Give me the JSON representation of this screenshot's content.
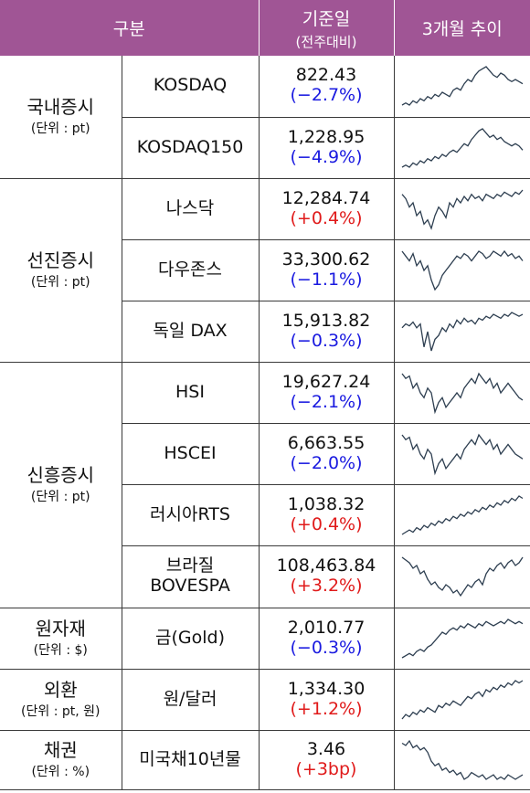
{
  "header": {
    "category": "구분",
    "price": "기준일",
    "price_sub": "(전주대비)",
    "trend": "3개월 추이"
  },
  "groups": [
    {
      "name": "국내증시",
      "unit": "(단위 : pt)",
      "rows": [
        {
          "item": "KOSDAQ",
          "value": "822.43",
          "change": "(−2.7%)",
          "dir": "neg",
          "spark": [
            30,
            31,
            30,
            32,
            31,
            33,
            32,
            34,
            33,
            35,
            34,
            36,
            35,
            34,
            37,
            38,
            37,
            40,
            42,
            41,
            44,
            46,
            47,
            48,
            46,
            44,
            43,
            45,
            44,
            42,
            41,
            42,
            41,
            40
          ]
        },
        {
          "item": "KOSDAQ150",
          "value": "1,228.95",
          "change": "(−4.9%)",
          "dir": "neg",
          "spark": [
            30,
            31,
            30,
            32,
            31,
            33,
            32,
            34,
            33,
            35,
            34,
            36,
            35,
            37,
            38,
            37,
            39,
            41,
            40,
            43,
            45,
            47,
            48,
            46,
            44,
            45,
            43,
            44,
            42,
            41,
            40,
            41,
            40,
            38
          ]
        }
      ]
    },
    {
      "name": "선진증시",
      "unit": "(단위 : pt)",
      "rows": [
        {
          "item": "나스닥",
          "value": "12,284.74",
          "change": "(+0.4%)",
          "dir": "pos",
          "spark": [
            46,
            44,
            40,
            42,
            36,
            38,
            32,
            34,
            30,
            36,
            40,
            38,
            35,
            42,
            40,
            44,
            42,
            45,
            43,
            46,
            44,
            45,
            43,
            46,
            45,
            44,
            46,
            45,
            47,
            46,
            45,
            47,
            46,
            48
          ]
        },
        {
          "item": "다우존스",
          "value": "33,300.62",
          "change": "(−1.1%)",
          "dir": "neg",
          "spark": [
            46,
            44,
            42,
            45,
            40,
            42,
            38,
            40,
            34,
            30,
            32,
            36,
            38,
            40,
            42,
            44,
            43,
            45,
            44,
            42,
            44,
            46,
            45,
            43,
            44,
            46,
            45,
            44,
            46,
            44,
            45,
            43,
            44,
            42
          ]
        },
        {
          "item": "독일 DAX",
          "value": "15,913.82",
          "change": "(−0.3%)",
          "dir": "neg",
          "spark": [
            40,
            42,
            41,
            43,
            40,
            42,
            30,
            38,
            28,
            34,
            36,
            40,
            38,
            42,
            40,
            44,
            42,
            45,
            43,
            44,
            42,
            45,
            44,
            46,
            45,
            47,
            46,
            45,
            47,
            46,
            48,
            47,
            46,
            47
          ]
        }
      ]
    },
    {
      "name": "신흥증시",
      "unit": "(단위 : pt)",
      "rows": [
        {
          "item": "HSI",
          "value": "19,627.24",
          "change": "(−2.1%)",
          "dir": "neg",
          "spark": [
            46,
            44,
            45,
            40,
            42,
            38,
            36,
            40,
            38,
            30,
            34,
            36,
            32,
            34,
            36,
            38,
            36,
            40,
            42,
            44,
            42,
            46,
            44,
            42,
            44,
            40,
            42,
            38,
            40,
            42,
            40,
            38,
            36,
            35
          ]
        },
        {
          "item": "HSCEI",
          "value": "6,663.55",
          "change": "(−2.0%)",
          "dir": "neg",
          "spark": [
            46,
            44,
            45,
            40,
            42,
            38,
            36,
            40,
            38,
            30,
            34,
            36,
            32,
            34,
            36,
            38,
            36,
            40,
            42,
            44,
            42,
            46,
            44,
            42,
            44,
            40,
            42,
            38,
            40,
            42,
            40,
            38,
            37,
            36
          ]
        },
        {
          "item": "러시아RTS",
          "value": "1,038.32",
          "change": "(+0.4%)",
          "dir": "pos",
          "spark": [
            30,
            31,
            32,
            31,
            33,
            32,
            34,
            33,
            35,
            34,
            36,
            35,
            37,
            36,
            38,
            37,
            39,
            38,
            40,
            39,
            41,
            40,
            42,
            41,
            43,
            42,
            44,
            43,
            45,
            44,
            46,
            45,
            47,
            46
          ]
        },
        {
          "item": "브라질 BOVESPA",
          "value": "108,463.84",
          "change": "(+3.2%)",
          "dir": "pos",
          "spark": [
            46,
            45,
            44,
            42,
            43,
            40,
            41,
            38,
            36,
            37,
            35,
            34,
            36,
            35,
            33,
            34,
            32,
            34,
            36,
            35,
            37,
            38,
            36,
            40,
            42,
            41,
            43,
            44,
            42,
            44,
            45,
            43,
            44,
            46
          ]
        }
      ]
    },
    {
      "name": "원자재",
      "unit": "(단위 : $)",
      "rows": [
        {
          "item": "금(Gold)",
          "value": "2,010.77",
          "change": "(−0.3%)",
          "dir": "neg",
          "spark": [
            30,
            31,
            32,
            31,
            33,
            34,
            33,
            35,
            36,
            38,
            40,
            42,
            41,
            43,
            44,
            43,
            45,
            44,
            46,
            45,
            44,
            46,
            45,
            47,
            46,
            45,
            46,
            47,
            46,
            48,
            47,
            46,
            47,
            46
          ]
        }
      ]
    },
    {
      "name": "외환",
      "unit": "(단위 : pt, 원)",
      "rows": [
        {
          "item": "원/달러",
          "value": "1,334.30",
          "change": "(+1.2%)",
          "dir": "pos",
          "spark": [
            30,
            32,
            31,
            33,
            32,
            34,
            33,
            35,
            34,
            33,
            36,
            35,
            37,
            36,
            38,
            37,
            36,
            38,
            40,
            39,
            41,
            42,
            40,
            43,
            42,
            44,
            43,
            45,
            44,
            46,
            45,
            47,
            46,
            47
          ]
        }
      ]
    },
    {
      "name": "채권",
      "unit": "(단위 : %)",
      "rows": [
        {
          "item": "미국채10년물",
          "value": "3.46",
          "change": "(+3bp)",
          "dir": "pos",
          "spark": [
            46,
            45,
            47,
            44,
            45,
            43,
            44,
            42,
            38,
            36,
            37,
            34,
            35,
            33,
            34,
            32,
            33,
            30,
            31,
            33,
            32,
            31,
            32,
            30,
            31,
            32,
            30,
            31,
            30,
            32,
            31,
            30,
            31,
            32
          ]
        }
      ]
    }
  ]
}
